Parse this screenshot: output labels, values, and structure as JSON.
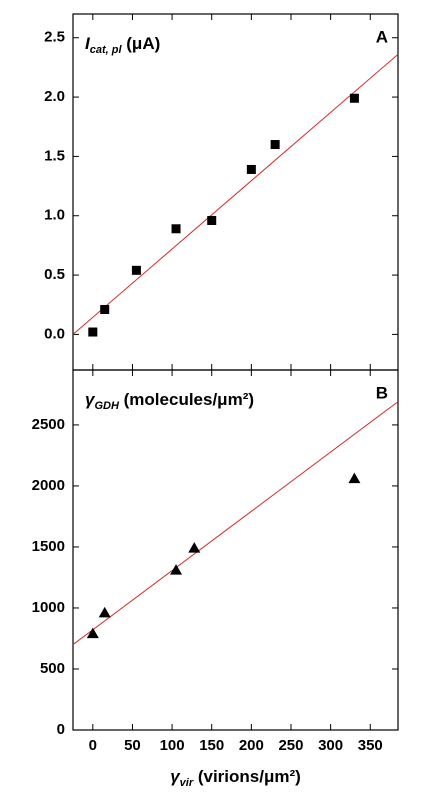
{
  "chart_data": [
    {
      "type": "scatter",
      "panel_label": "A",
      "ylabel": {
        "symbol": "I",
        "sub": "cat, pl",
        "unit": " (μA)"
      },
      "x": [
        0,
        15,
        55,
        105,
        150,
        200,
        230,
        330
      ],
      "series": [
        {
          "marker": "square",
          "color": "#000000",
          "values": [
            0.02,
            0.21,
            0.54,
            0.89,
            0.96,
            1.39,
            1.6,
            1.99
          ]
        }
      ],
      "fit": {
        "color": "#d42a2a",
        "x": [
          -25,
          385
        ],
        "y": [
          0.0,
          2.36
        ]
      },
      "xlim": [
        -25,
        385
      ],
      "xticks": [
        0,
        50,
        100,
        150,
        200,
        250,
        300,
        350
      ],
      "ylim": [
        -0.3,
        2.7
      ],
      "yticks": [
        {
          "value": 0,
          "label": "0.0"
        },
        0.5,
        {
          "value": 1,
          "label": "1.0"
        },
        1.5,
        {
          "value": 2,
          "label": "2.0"
        },
        2.5
      ]
    },
    {
      "type": "scatter",
      "panel_label": "B",
      "ylabel": {
        "symbol": "γ",
        "sub": "GDH",
        "unit": " (molecules/μm²)"
      },
      "xlabel": {
        "symbol": "γ",
        "sub": "vir",
        "unit": " (virions/μm²)"
      },
      "x": [
        0,
        15,
        105,
        128,
        330
      ],
      "series": [
        {
          "marker": "triangle",
          "color": "#000000",
          "values": [
            790,
            960,
            1310,
            1490,
            2060
          ]
        }
      ],
      "fit": {
        "color": "#d42a2a",
        "x": [
          -25,
          385
        ],
        "y": [
          700,
          2690
        ]
      },
      "xlim": [
        -25,
        385
      ],
      "xticks": [
        0,
        50,
        100,
        150,
        200,
        250,
        300,
        350
      ],
      "ylim": [
        0,
        2950
      ],
      "yticks": [
        0,
        500,
        1000,
        1500,
        2000,
        2500
      ]
    }
  ]
}
